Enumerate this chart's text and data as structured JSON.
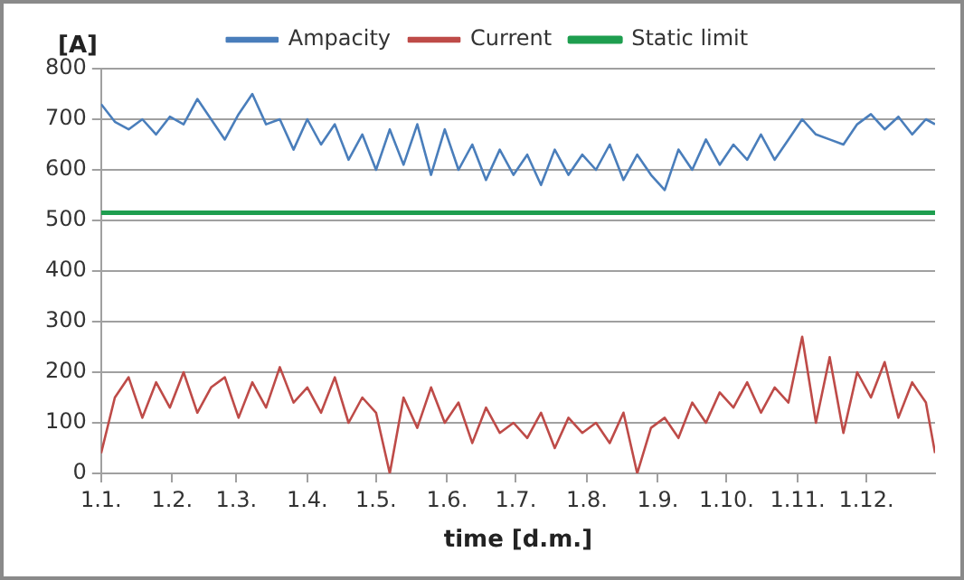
{
  "chart_data": {
    "type": "line",
    "xlabel": "time [d.m.]",
    "ylabel": "[A]",
    "x": [
      "--01-01",
      "--01-07",
      "--01-13",
      "--01-19",
      "--01-25",
      "--01-31",
      "--02-06",
      "--02-12",
      "--02-18",
      "--02-24",
      "--03-02",
      "--03-08",
      "--03-14",
      "--03-20",
      "--03-26",
      "--04-01",
      "--04-07",
      "--04-13",
      "--04-19",
      "--04-25",
      "--05-01",
      "--05-07",
      "--05-13",
      "--05-19",
      "--05-25",
      "--05-31",
      "--06-06",
      "--06-12",
      "--06-18",
      "--06-24",
      "--06-30",
      "--07-06",
      "--07-12",
      "--07-18",
      "--07-24",
      "--07-30",
      "--08-05",
      "--08-11",
      "--08-17",
      "--08-23",
      "--08-29",
      "--09-04",
      "--09-10",
      "--09-16",
      "--09-22",
      "--09-28",
      "--10-04",
      "--10-10",
      "--10-16",
      "--10-22",
      "--10-28",
      "--11-03",
      "--11-09",
      "--11-15",
      "--11-21",
      "--11-27",
      "--12-03",
      "--12-09",
      "--12-15",
      "--12-21",
      "--12-27",
      "--12-31"
    ],
    "series": [
      {
        "name": "Ampacity",
        "color": "#4a7ebb",
        "values": [
          730,
          695,
          680,
          700,
          670,
          705,
          690,
          740,
          700,
          660,
          710,
          750,
          690,
          700,
          640,
          700,
          650,
          690,
          620,
          670,
          600,
          680,
          610,
          690,
          590,
          680,
          600,
          650,
          580,
          640,
          590,
          630,
          570,
          640,
          590,
          630,
          600,
          650,
          580,
          630,
          590,
          560,
          640,
          600,
          660,
          610,
          650,
          620,
          670,
          620,
          660,
          700,
          670,
          660,
          650,
          690,
          710,
          680,
          705,
          670,
          700,
          690
        ]
      },
      {
        "name": "Current",
        "color": "#be4b48",
        "values": [
          40,
          150,
          190,
          110,
          180,
          130,
          200,
          120,
          170,
          190,
          110,
          180,
          130,
          210,
          140,
          170,
          120,
          190,
          100,
          150,
          120,
          0,
          150,
          90,
          170,
          100,
          140,
          60,
          130,
          80,
          100,
          70,
          120,
          50,
          110,
          80,
          100,
          60,
          120,
          0,
          90,
          110,
          70,
          140,
          100,
          160,
          130,
          180,
          120,
          170,
          140,
          270,
          100,
          230,
          80,
          200,
          150,
          220,
          110,
          180,
          140,
          40
        ]
      },
      {
        "name": "Static limit",
        "color": "#1e9e4f",
        "x": [
          "--01-01",
          "--12-31"
        ],
        "values": [
          515,
          515
        ]
      }
    ],
    "xlim": [
      "--01-01",
      "--12-31"
    ],
    "xticks": [
      {
        "value": "--01-01",
        "label": "1.1."
      },
      {
        "value": "--02-01",
        "label": "1.2."
      },
      {
        "value": "--03-01",
        "label": "1.3."
      },
      {
        "value": "--04-01",
        "label": "1.4."
      },
      {
        "value": "--05-01",
        "label": "1.5."
      },
      {
        "value": "--06-01",
        "label": "1.6."
      },
      {
        "value": "--07-01",
        "label": "1.7."
      },
      {
        "value": "--08-01",
        "label": "1.8."
      },
      {
        "value": "--09-01",
        "label": "1.9."
      },
      {
        "value": "--10-01",
        "label": "1.10."
      },
      {
        "value": "--11-01",
        "label": "1.11."
      },
      {
        "value": "--12-01",
        "label": "1.12."
      }
    ],
    "ylim": [
      0,
      800
    ],
    "yticks": [
      0,
      100,
      200,
      300,
      400,
      500,
      600,
      700,
      800
    ],
    "grid": "y",
    "legend": "top",
    "marker": "none",
    "line_style": "solid"
  }
}
